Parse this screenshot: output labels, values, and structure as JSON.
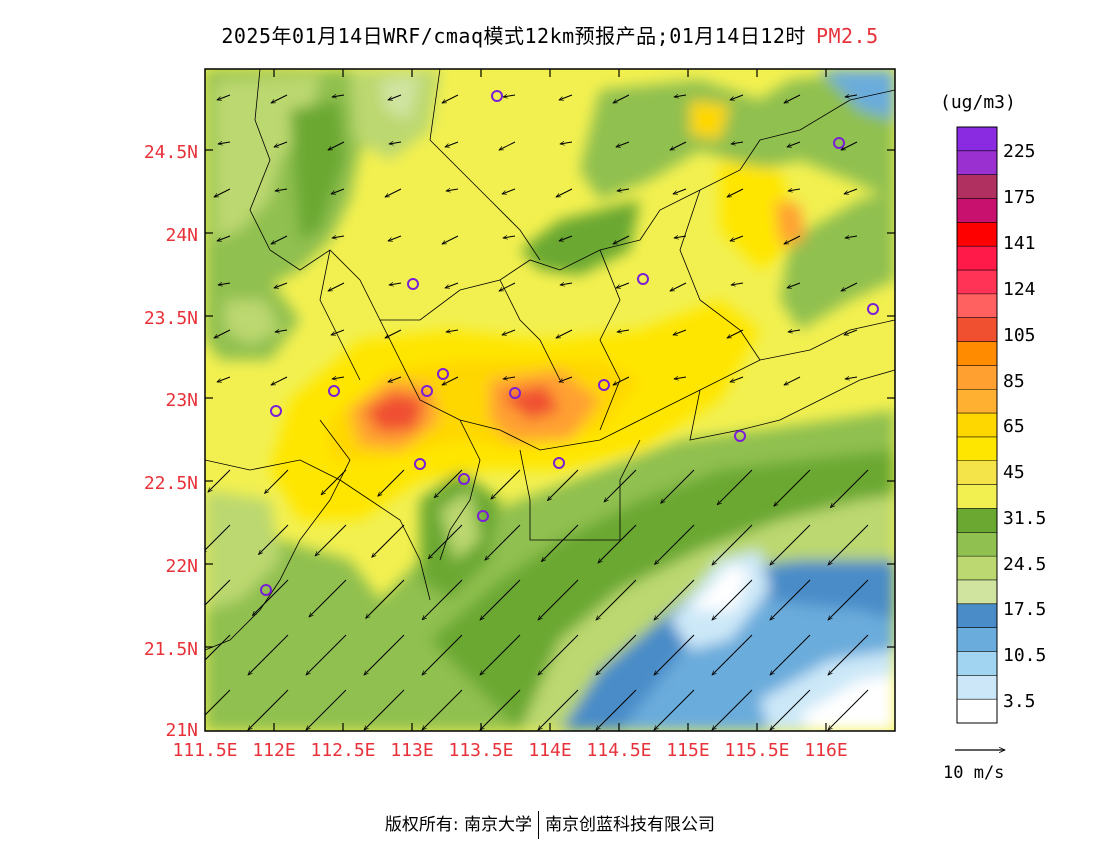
{
  "title": {
    "main": "2025年01月14日WRF/cmaq模式12km预报产品;01月14日12时",
    "pollutant": "PM2.5"
  },
  "map": {
    "lat_labels": [
      "24.5N",
      "24N",
      "23.5N",
      "23N",
      "22.5N",
      "22N",
      "21.5N",
      "21N"
    ],
    "lon_labels": [
      "111.5E",
      "112E",
      "112.5E",
      "113E",
      "113.5E",
      "114E",
      "114.5E",
      "115E",
      "115.5E",
      "116E"
    ],
    "lon_range": [
      111.5,
      116.5
    ],
    "lat_range": [
      21,
      25
    ]
  },
  "colorbar": {
    "unit": "(ug/m3)",
    "labels": [
      "225",
      "175",
      "141",
      "124",
      "105",
      "85",
      "65",
      "45",
      "31.5",
      "24.5",
      "17.5",
      "10.5",
      "3.5"
    ],
    "colors": [
      "#8a2be2",
      "#9b30d0",
      "#b03060",
      "#c8106e",
      "#ff0000",
      "#ff1a4a",
      "#ff3355",
      "#ff6060",
      "#f05030",
      "#ff8c00",
      "#ffa030",
      "#ffb030",
      "#ffd700",
      "#ffe600",
      "#f4e44a",
      "#f2f050",
      "#6aa832",
      "#90c050",
      "#bcd870",
      "#d0e4a0",
      "#4a8cc8",
      "#6aacdc",
      "#a0d4f0",
      "#cce8f8",
      "#ffffff"
    ]
  },
  "wind": {
    "reference_label": "10 m/s"
  },
  "footer": {
    "left": "版权所有: 南京大学",
    "right": "南京创蓝科技有限公司"
  },
  "colors": {
    "label_red": "#e8323a"
  }
}
